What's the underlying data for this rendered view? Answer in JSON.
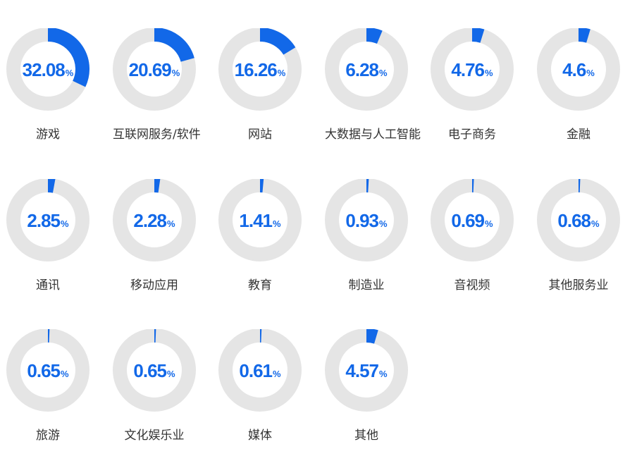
{
  "chart_data": {
    "type": "pie",
    "unit": "%",
    "colors": {
      "fill": "#1268e8",
      "track": "#e5e5e5",
      "label": "#333333"
    },
    "categories": [
      "游戏",
      "互联网服务/软件",
      "网站",
      "大数据与人工智能",
      "电子商务",
      "金融",
      "通讯",
      "移动应用",
      "教育",
      "制造业",
      "音视频",
      "其他服务业",
      "旅游",
      "文化娱乐业",
      "媒体",
      "其他"
    ],
    "values": [
      32.08,
      20.69,
      16.26,
      6.28,
      4.76,
      4.6,
      2.85,
      2.28,
      1.41,
      0.93,
      0.69,
      0.68,
      0.65,
      0.65,
      0.61,
      4.57
    ],
    "value_labels": [
      "32.08",
      "20.69",
      "16.26",
      "6.28",
      "4.76",
      "4.6",
      "2.85",
      "2.28",
      "1.41",
      "0.93",
      "0.69",
      "0.68",
      "0.65",
      "0.65",
      "0.61",
      "4.57"
    ]
  }
}
